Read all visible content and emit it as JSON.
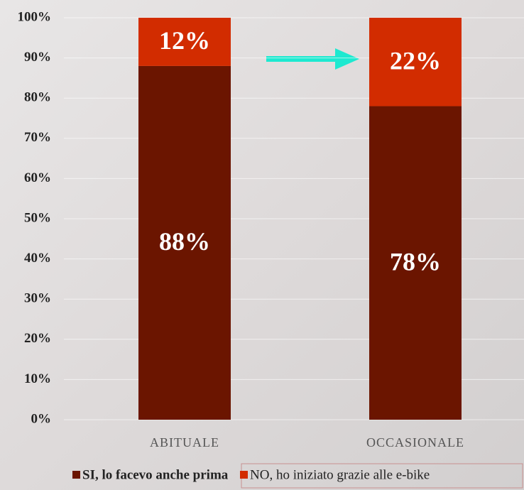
{
  "chart_data": {
    "type": "stacked_bar",
    "categories": [
      "ABITUALE",
      "OCCASIONALE"
    ],
    "series": [
      {
        "name": "SI, lo facevo anche prima",
        "color": "#6b1500",
        "values": [
          88,
          78
        ],
        "value_labels": [
          "88%",
          "78%"
        ]
      },
      {
        "name": "NO, ho iniziato grazie alle e-bike",
        "color": "#d22c00",
        "values": [
          12,
          22
        ],
        "value_labels": [
          "12%",
          "22%"
        ]
      }
    ],
    "ylim": [
      0,
      100
    ],
    "yticks": [
      {
        "value": 0,
        "label": "0%"
      },
      {
        "value": 10,
        "label": "10%"
      },
      {
        "value": 20,
        "label": "20%"
      },
      {
        "value": 30,
        "label": "30%"
      },
      {
        "value": 40,
        "label": "40%"
      },
      {
        "value": 50,
        "label": "50%"
      },
      {
        "value": 60,
        "label": "60%"
      },
      {
        "value": 70,
        "label": "70%"
      },
      {
        "value": 80,
        "label": "80%"
      },
      {
        "value": 90,
        "label": "90%"
      },
      {
        "value": 100,
        "label": "100%"
      }
    ],
    "grid": true
  }
}
